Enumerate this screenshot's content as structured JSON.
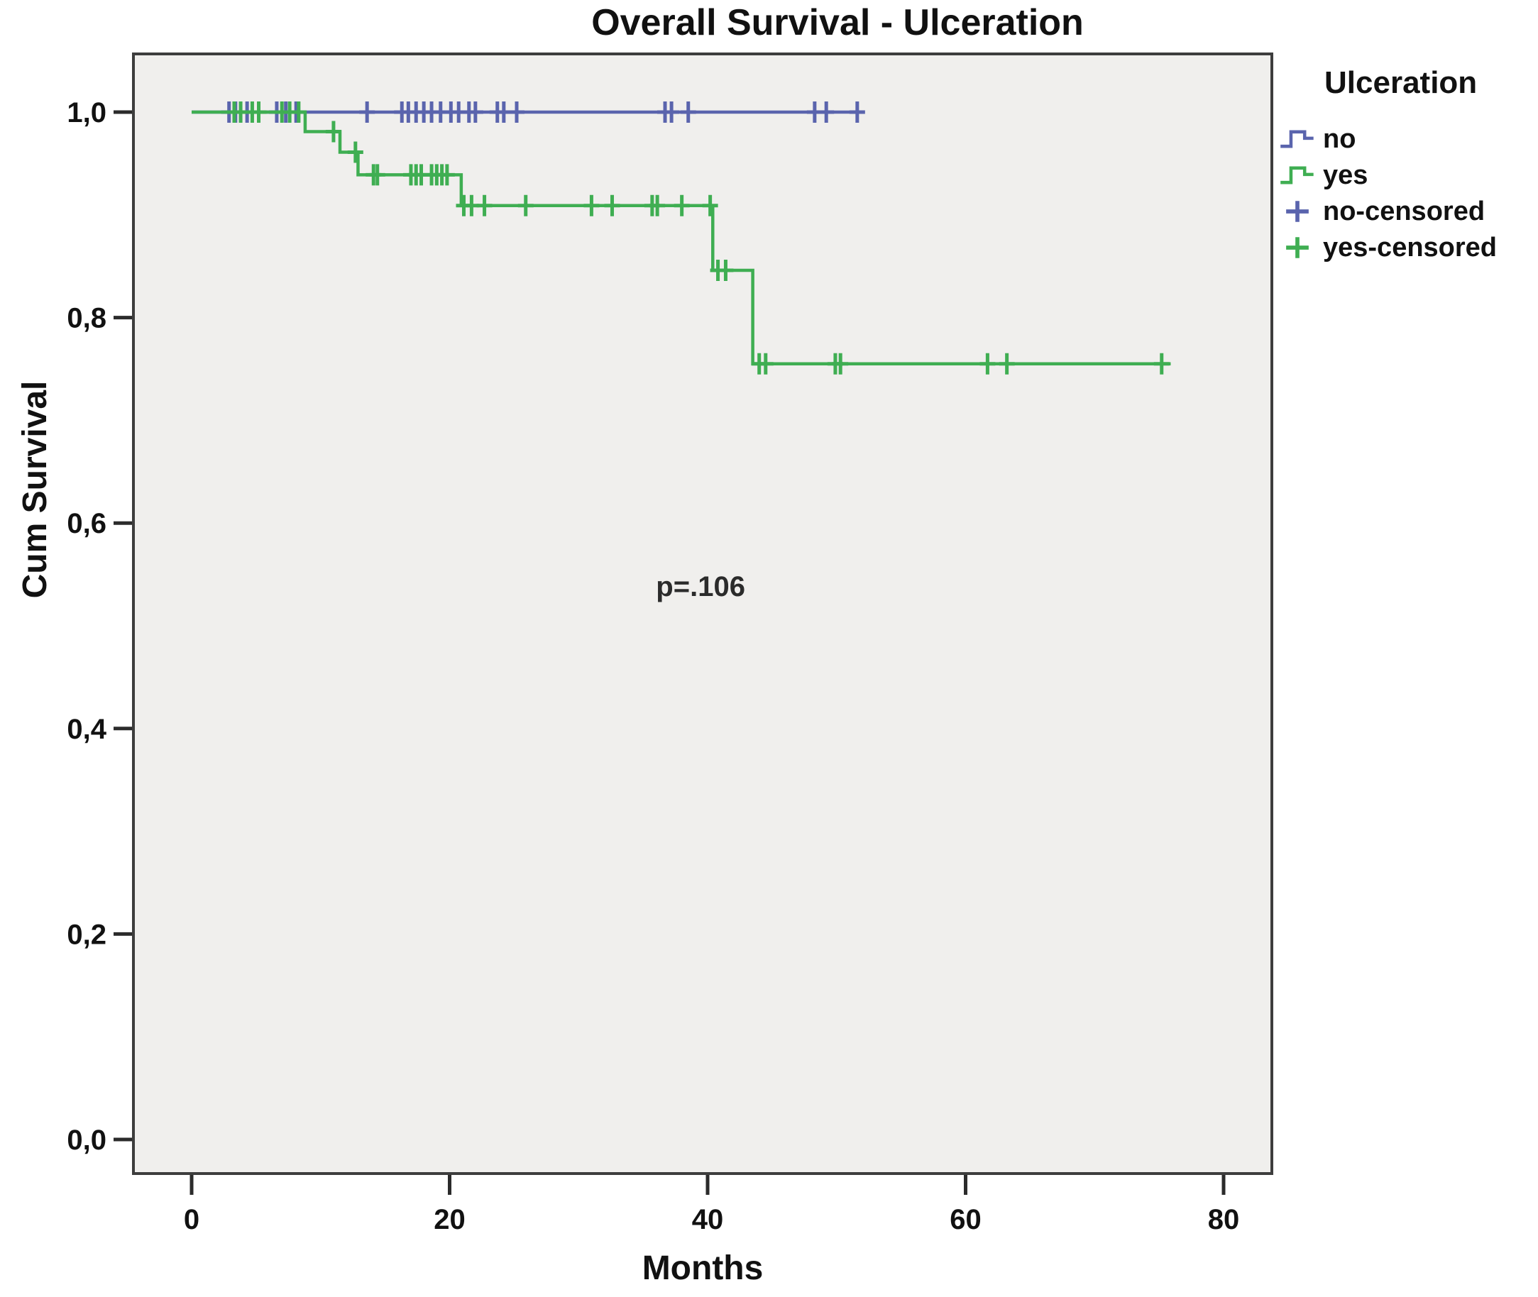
{
  "figure": {
    "title": "Overall Survival - Ulceration"
  },
  "chart_data": {
    "type": "line",
    "subtype": "kaplan-meier-step",
    "title": "Overall Survival - Ulceration",
    "xlabel": "Months",
    "ylabel": "Cum Survival",
    "xlim": [
      -4.5,
      83.8
    ],
    "ylim": [
      -0.032,
      1.057
    ],
    "grid": false,
    "x_ticks": [
      {
        "value": 0,
        "label": "0"
      },
      {
        "value": 20,
        "label": "20"
      },
      {
        "value": 40,
        "label": "40"
      },
      {
        "value": 60,
        "label": "60"
      },
      {
        "value": 80,
        "label": "80"
      }
    ],
    "y_ticks": [
      {
        "value": 1.0,
        "label": "1,0"
      },
      {
        "value": 0.8,
        "label": "0,8"
      },
      {
        "value": 0.6,
        "label": "0,6"
      },
      {
        "value": 0.4,
        "label": "0,4"
      },
      {
        "value": 0.2,
        "label": "0,2"
      },
      {
        "value": 0.0,
        "label": "0,0"
      }
    ],
    "annotation": {
      "text": "p=.106",
      "x_months": 36,
      "y_survival": 0.535
    },
    "legend": {
      "title": "Ulceration",
      "position": "right",
      "entries": [
        {
          "label": "no",
          "marker": "step",
          "color": "#5a64ad"
        },
        {
          "label": "yes",
          "marker": "step",
          "color": "#3fae52"
        },
        {
          "label": "no-censored",
          "marker": "plus",
          "color": "#5a64ad"
        },
        {
          "label": "yes-censored",
          "marker": "plus",
          "color": "#3fae52"
        }
      ]
    },
    "series": [
      {
        "name": "no",
        "color": "#5a64ad",
        "end_month": 51.6,
        "steps": [
          [
            0,
            1.0
          ]
        ],
        "censored": [
          [
            2.9,
            1.0
          ],
          [
            3.4,
            1.0
          ],
          [
            4.3,
            1.0
          ],
          [
            6.6,
            1.0
          ],
          [
            7.3,
            1.0
          ],
          [
            8.1,
            1.0
          ],
          [
            13.6,
            1.0
          ],
          [
            16.3,
            1.0
          ],
          [
            16.8,
            1.0
          ],
          [
            17.4,
            1.0
          ],
          [
            18.0,
            1.0
          ],
          [
            18.6,
            1.0
          ],
          [
            19.3,
            1.0
          ],
          [
            20.1,
            1.0
          ],
          [
            20.7,
            1.0
          ],
          [
            21.5,
            1.0
          ],
          [
            22.0,
            1.0
          ],
          [
            23.7,
            1.0
          ],
          [
            24.2,
            1.0
          ],
          [
            25.2,
            1.0
          ],
          [
            36.7,
            1.0
          ],
          [
            37.2,
            1.0
          ],
          [
            38.5,
            1.0
          ],
          [
            48.3,
            1.0
          ],
          [
            49.2,
            1.0
          ],
          [
            51.6,
            1.0
          ]
        ]
      },
      {
        "name": "yes",
        "color": "#3fae52",
        "end_month": 75.9,
        "steps": [
          [
            0,
            1.0
          ],
          [
            8.8,
            0.981
          ],
          [
            11.5,
            0.961
          ],
          [
            12.9,
            0.939
          ],
          [
            20.9,
            0.909
          ],
          [
            40.4,
            0.846
          ],
          [
            43.5,
            0.755
          ]
        ],
        "censored": [
          [
            3.3,
            1.0
          ],
          [
            3.8,
            1.0
          ],
          [
            4.7,
            1.0
          ],
          [
            5.2,
            1.0
          ],
          [
            7.0,
            1.0
          ],
          [
            7.6,
            1.0
          ],
          [
            8.3,
            1.0
          ],
          [
            11.0,
            0.981
          ],
          [
            12.7,
            0.961
          ],
          [
            14.1,
            0.939
          ],
          [
            14.4,
            0.939
          ],
          [
            17.0,
            0.939
          ],
          [
            17.4,
            0.939
          ],
          [
            17.8,
            0.939
          ],
          [
            18.6,
            0.939
          ],
          [
            19.0,
            0.939
          ],
          [
            19.4,
            0.939
          ],
          [
            19.8,
            0.939
          ],
          [
            21.1,
            0.909
          ],
          [
            21.7,
            0.909
          ],
          [
            22.7,
            0.909
          ],
          [
            25.9,
            0.909
          ],
          [
            31.0,
            0.909
          ],
          [
            32.6,
            0.909
          ],
          [
            35.7,
            0.909
          ],
          [
            36.1,
            0.909
          ],
          [
            38.0,
            0.909
          ],
          [
            40.2,
            0.909
          ],
          [
            40.8,
            0.846
          ],
          [
            41.4,
            0.846
          ],
          [
            44.0,
            0.755
          ],
          [
            44.5,
            0.755
          ],
          [
            49.9,
            0.755
          ],
          [
            50.3,
            0.755
          ],
          [
            61.7,
            0.755
          ],
          [
            63.2,
            0.755
          ],
          [
            75.2,
            0.755
          ]
        ]
      }
    ],
    "colors": {
      "plot_bg": "#f0efed",
      "frame": "#3d3d3d",
      "tick": "#2b2b2b",
      "text": "#111111"
    }
  }
}
